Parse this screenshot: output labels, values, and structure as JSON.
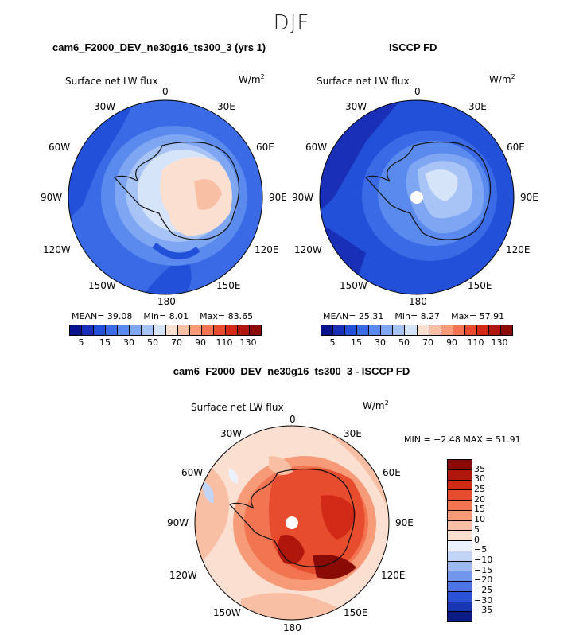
{
  "season": "DJF",
  "panels": [
    {
      "title": "cam6_F2000_DEV_ne30g16_ts300_3 (yrs 1)",
      "variable": "Surface net LW flux",
      "units": "W/m",
      "units_exp": "2",
      "stats": {
        "mean_label": "MEAN=",
        "mean": "39.08",
        "min_label": "Min=",
        "min": "8.01",
        "max_label": "Max=",
        "max": "83.65"
      }
    },
    {
      "title": "ISCCP FD",
      "variable": "Surface net LW flux",
      "units": "W/m",
      "units_exp": "2",
      "stats": {
        "mean_label": "MEAN=",
        "mean": "25.31",
        "min_label": "Min=",
        "min": "8.27",
        "max_label": "Max=",
        "max": "57.91"
      }
    },
    {
      "title": "cam6_F2000_DEV_ne30g16_ts300_3 - ISCCP FD",
      "variable": "Surface net LW flux",
      "units": "W/m",
      "units_exp": "2",
      "stats_line": "MIN =  −2.48 MAX =  51.91"
    }
  ],
  "longitudes": {
    "top": "0",
    "l30w": "30W",
    "r30e": "30E",
    "l60w": "60W",
    "r60e": "60E",
    "l90w": "90W",
    "r90e": "90E",
    "l120w": "120W",
    "r120e": "120E",
    "l150w": "150W",
    "r150e": "150E",
    "bottom": "180"
  },
  "colorbar_abs": {
    "ticks": [
      "5",
      "15",
      "30",
      "50",
      "70",
      "90",
      "110",
      "130"
    ],
    "colors": [
      "#08128a",
      "#1a2fb8",
      "#2350d8",
      "#3a6ae6",
      "#5b8aee",
      "#7fa6f2",
      "#a8c4f6",
      "#d6e4fa",
      "#fbe0d2",
      "#f9bfa5",
      "#f69a78",
      "#f27451",
      "#e84c2e",
      "#d22a16",
      "#b0160c",
      "#8a0a06"
    ]
  },
  "colorbar_diff": {
    "ticks": [
      "35",
      "30",
      "25",
      "20",
      "15",
      "10",
      "5",
      "0",
      "−5",
      "−10",
      "−15",
      "−20",
      "−25",
      "−30",
      "−35"
    ],
    "colors": [
      "#8a0a06",
      "#b0160c",
      "#d22a16",
      "#e84c2e",
      "#f27451",
      "#f69a78",
      "#f9bfa5",
      "#fbe0d2",
      "#eaf2ff",
      "#c3d5f7",
      "#9db8f1",
      "#7296eb",
      "#4b73e3",
      "#2b52d6",
      "#1836b3",
      "#0b1b86"
    ]
  }
}
